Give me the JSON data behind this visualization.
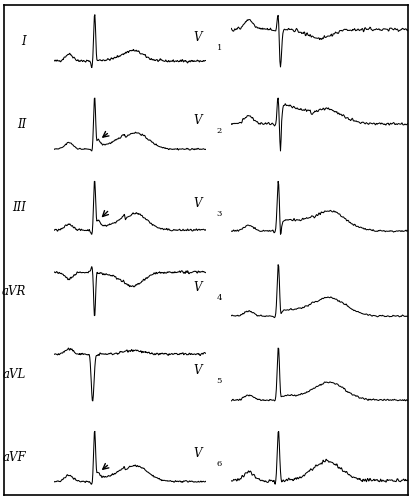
{
  "background_color": "#ffffff",
  "leads_left": [
    "I",
    "II",
    "III",
    "aVR",
    "aVL",
    "aVF"
  ],
  "leads_right": [
    "V1",
    "V2",
    "V3",
    "V4",
    "V5",
    "V6"
  ],
  "arrow_leads": [
    "II",
    "III",
    "aVF"
  ],
  "figsize": [
    4.12,
    5.0
  ],
  "dpi": 100
}
